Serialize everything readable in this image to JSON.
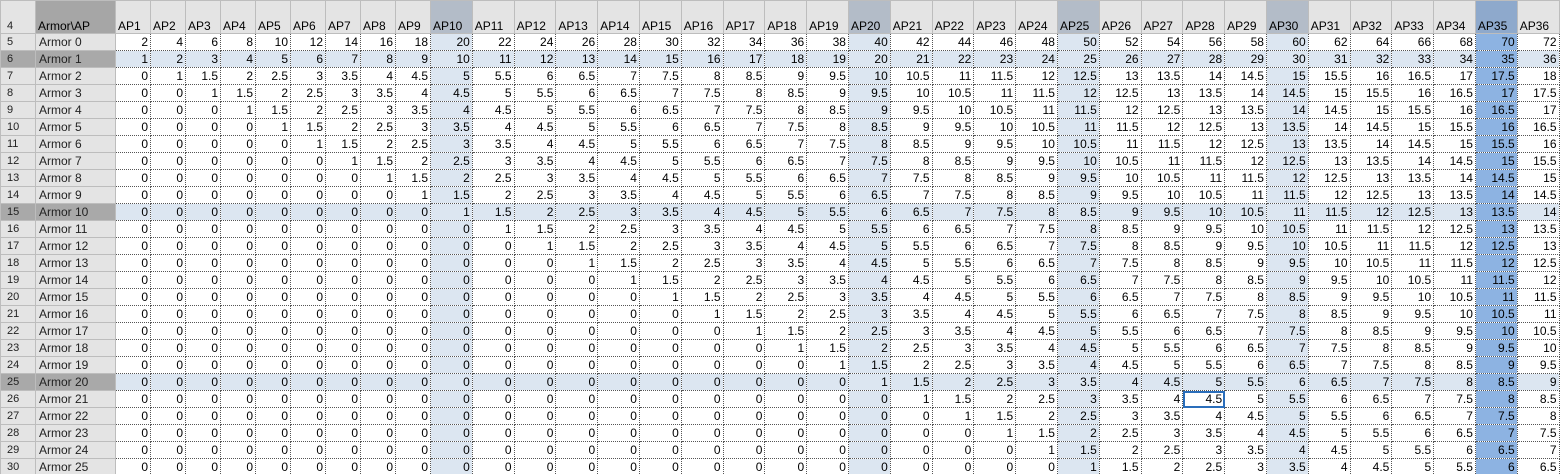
{
  "sheet": {
    "row_numbers": [
      4,
      5,
      6,
      7,
      8,
      9,
      10,
      11,
      12,
      13,
      14,
      15,
      16,
      17,
      18,
      19,
      20,
      21,
      22,
      23,
      24,
      25,
      26,
      27,
      28,
      29,
      30
    ],
    "corner": "Armor\\AP",
    "columns": [
      "AP1",
      "AP2",
      "AP3",
      "AP4",
      "AP5",
      "AP6",
      "AP7",
      "AP8",
      "AP9",
      "AP10",
      "AP11",
      "AP12",
      "AP13",
      "AP14",
      "AP15",
      "AP16",
      "AP17",
      "AP18",
      "AP19",
      "AP20",
      "AP21",
      "AP22",
      "AP23",
      "AP24",
      "AP25",
      "AP26",
      "AP27",
      "AP28",
      "AP29",
      "AP30",
      "AP31",
      "AP32",
      "AP33",
      "AP34",
      "AP35",
      "AP36"
    ],
    "rows": [
      {
        "label": "Armor 0",
        "values": [
          2,
          4,
          6,
          8,
          10,
          12,
          14,
          16,
          18,
          20,
          22,
          24,
          26,
          28,
          30,
          32,
          34,
          36,
          38,
          40,
          42,
          44,
          46,
          48,
          50,
          52,
          54,
          56,
          58,
          60,
          62,
          64,
          66,
          68,
          70,
          72
        ]
      },
      {
        "label": "Armor 1",
        "values": [
          1,
          2,
          3,
          4,
          5,
          6,
          7,
          8,
          9,
          10,
          11,
          12,
          13,
          14,
          15,
          16,
          17,
          18,
          19,
          20,
          21,
          22,
          23,
          24,
          25,
          26,
          27,
          28,
          29,
          30,
          31,
          32,
          33,
          34,
          35,
          36
        ]
      },
      {
        "label": "Armor 2",
        "values": [
          0,
          1,
          1.5,
          2,
          2.5,
          3,
          3.5,
          4,
          4.5,
          5,
          5.5,
          6,
          6.5,
          7,
          7.5,
          8,
          8.5,
          9,
          9.5,
          10,
          10.5,
          11,
          11.5,
          12,
          12.5,
          13,
          13.5,
          14,
          14.5,
          15,
          15.5,
          16,
          16.5,
          17,
          17.5,
          18
        ]
      },
      {
        "label": "Armor 3",
        "values": [
          0,
          0,
          1,
          1.5,
          2,
          2.5,
          3,
          3.5,
          4,
          4.5,
          5,
          5.5,
          6,
          6.5,
          7,
          7.5,
          8,
          8.5,
          9,
          9.5,
          10,
          10.5,
          11,
          11.5,
          12,
          12.5,
          13,
          13.5,
          14,
          14.5,
          15,
          15.5,
          16,
          16.5,
          17,
          17.5
        ]
      },
      {
        "label": "Armor 4",
        "values": [
          0,
          0,
          0,
          1,
          1.5,
          2,
          2.5,
          3,
          3.5,
          4,
          4.5,
          5,
          5.5,
          6,
          6.5,
          7,
          7.5,
          8,
          8.5,
          9,
          9.5,
          10,
          10.5,
          11,
          11.5,
          12,
          12.5,
          13,
          13.5,
          14,
          14.5,
          15,
          15.5,
          16,
          16.5,
          17
        ]
      },
      {
        "label": "Armor 5",
        "values": [
          0,
          0,
          0,
          0,
          1,
          1.5,
          2,
          2.5,
          3,
          3.5,
          4,
          4.5,
          5,
          5.5,
          6,
          6.5,
          7,
          7.5,
          8,
          8.5,
          9,
          9.5,
          10,
          10.5,
          11,
          11.5,
          12,
          12.5,
          13,
          13.5,
          14,
          14.5,
          15,
          15.5,
          16,
          16.5
        ]
      },
      {
        "label": "Armor 6",
        "values": [
          0,
          0,
          0,
          0,
          0,
          1,
          1.5,
          2,
          2.5,
          3,
          3.5,
          4,
          4.5,
          5,
          5.5,
          6,
          6.5,
          7,
          7.5,
          8,
          8.5,
          9,
          9.5,
          10,
          10.5,
          11,
          11.5,
          12,
          12.5,
          13,
          13.5,
          14,
          14.5,
          15,
          15.5,
          16
        ]
      },
      {
        "label": "Armor 7",
        "values": [
          0,
          0,
          0,
          0,
          0,
          0,
          1,
          1.5,
          2,
          2.5,
          3,
          3.5,
          4,
          4.5,
          5,
          5.5,
          6,
          6.5,
          7,
          7.5,
          8,
          8.5,
          9,
          9.5,
          10,
          10.5,
          11,
          11.5,
          12,
          12.5,
          13,
          13.5,
          14,
          14.5,
          15,
          15.5
        ]
      },
      {
        "label": "Armor 8",
        "values": [
          0,
          0,
          0,
          0,
          0,
          0,
          0,
          1,
          1.5,
          2,
          2.5,
          3,
          3.5,
          4,
          4.5,
          5,
          5.5,
          6,
          6.5,
          7,
          7.5,
          8,
          8.5,
          9,
          9.5,
          10,
          10.5,
          11,
          11.5,
          12,
          12.5,
          13,
          13.5,
          14,
          14.5,
          15
        ]
      },
      {
        "label": "Armor 9",
        "values": [
          0,
          0,
          0,
          0,
          0,
          0,
          0,
          0,
          1,
          1.5,
          2,
          2.5,
          3,
          3.5,
          4,
          4.5,
          5,
          5.5,
          6,
          6.5,
          7,
          7.5,
          8,
          8.5,
          9,
          9.5,
          10,
          10.5,
          11,
          11.5,
          12,
          12.5,
          13,
          13.5,
          14,
          14.5
        ]
      },
      {
        "label": "Armor 10",
        "values": [
          0,
          0,
          0,
          0,
          0,
          0,
          0,
          0,
          0,
          1,
          1.5,
          2,
          2.5,
          3,
          3.5,
          4,
          4.5,
          5,
          5.5,
          6,
          6.5,
          7,
          7.5,
          8,
          8.5,
          9,
          9.5,
          10,
          10.5,
          11,
          11.5,
          12,
          12.5,
          13,
          13.5,
          14
        ]
      },
      {
        "label": "Armor 11",
        "values": [
          0,
          0,
          0,
          0,
          0,
          0,
          0,
          0,
          0,
          0,
          1,
          1.5,
          2,
          2.5,
          3,
          3.5,
          4,
          4.5,
          5,
          5.5,
          6,
          6.5,
          7,
          7.5,
          8,
          8.5,
          9,
          9.5,
          10,
          10.5,
          11,
          11.5,
          12,
          12.5,
          13,
          13.5
        ]
      },
      {
        "label": "Armor 12",
        "values": [
          0,
          0,
          0,
          0,
          0,
          0,
          0,
          0,
          0,
          0,
          0,
          1,
          1.5,
          2,
          2.5,
          3,
          3.5,
          4,
          4.5,
          5,
          5.5,
          6,
          6.5,
          7,
          7.5,
          8,
          8.5,
          9,
          9.5,
          10,
          10.5,
          11,
          11.5,
          12,
          12.5,
          13
        ]
      },
      {
        "label": "Armor 13",
        "values": [
          0,
          0,
          0,
          0,
          0,
          0,
          0,
          0,
          0,
          0,
          0,
          0,
          1,
          1.5,
          2,
          2.5,
          3,
          3.5,
          4,
          4.5,
          5,
          5.5,
          6,
          6.5,
          7,
          7.5,
          8,
          8.5,
          9,
          9.5,
          10,
          10.5,
          11,
          11.5,
          12,
          12.5
        ]
      },
      {
        "label": "Armor 14",
        "values": [
          0,
          0,
          0,
          0,
          0,
          0,
          0,
          0,
          0,
          0,
          0,
          0,
          0,
          1,
          1.5,
          2,
          2.5,
          3,
          3.5,
          4,
          4.5,
          5,
          5.5,
          6,
          6.5,
          7,
          7.5,
          8,
          8.5,
          9,
          9.5,
          10,
          10.5,
          11,
          11.5,
          12
        ]
      },
      {
        "label": "Armor 15",
        "values": [
          0,
          0,
          0,
          0,
          0,
          0,
          0,
          0,
          0,
          0,
          0,
          0,
          0,
          0,
          1,
          1.5,
          2,
          2.5,
          3,
          3.5,
          4,
          4.5,
          5,
          5.5,
          6,
          6.5,
          7,
          7.5,
          8,
          8.5,
          9,
          9.5,
          10,
          10.5,
          11,
          11.5
        ]
      },
      {
        "label": "Armor 16",
        "values": [
          0,
          0,
          0,
          0,
          0,
          0,
          0,
          0,
          0,
          0,
          0,
          0,
          0,
          0,
          0,
          1,
          1.5,
          2,
          2.5,
          3,
          3.5,
          4,
          4.5,
          5,
          5.5,
          6,
          6.5,
          7,
          7.5,
          8,
          8.5,
          9,
          9.5,
          10,
          10.5,
          11
        ]
      },
      {
        "label": "Armor 17",
        "values": [
          0,
          0,
          0,
          0,
          0,
          0,
          0,
          0,
          0,
          0,
          0,
          0,
          0,
          0,
          0,
          0,
          1,
          1.5,
          2,
          2.5,
          3,
          3.5,
          4,
          4.5,
          5,
          5.5,
          6,
          6.5,
          7,
          7.5,
          8,
          8.5,
          9,
          9.5,
          10,
          10.5
        ]
      },
      {
        "label": "Armor 18",
        "values": [
          0,
          0,
          0,
          0,
          0,
          0,
          0,
          0,
          0,
          0,
          0,
          0,
          0,
          0,
          0,
          0,
          0,
          1,
          1.5,
          2,
          2.5,
          3,
          3.5,
          4,
          4.5,
          5,
          5.5,
          6,
          6.5,
          7,
          7.5,
          8,
          8.5,
          9,
          9.5,
          10
        ]
      },
      {
        "label": "Armor 19",
        "values": [
          0,
          0,
          0,
          0,
          0,
          0,
          0,
          0,
          0,
          0,
          0,
          0,
          0,
          0,
          0,
          0,
          0,
          0,
          1,
          1.5,
          2,
          2.5,
          3,
          3.5,
          4,
          4.5,
          5,
          5.5,
          6,
          6.5,
          7,
          7.5,
          8,
          8.5,
          9,
          9.5
        ]
      },
      {
        "label": "Armor 20",
        "values": [
          0,
          0,
          0,
          0,
          0,
          0,
          0,
          0,
          0,
          0,
          0,
          0,
          0,
          0,
          0,
          0,
          0,
          0,
          0,
          1,
          1.5,
          2,
          2.5,
          3,
          3.5,
          4,
          4.5,
          5,
          5.5,
          6,
          6.5,
          7,
          7.5,
          8,
          8.5,
          9
        ]
      },
      {
        "label": "Armor 21",
        "values": [
          0,
          0,
          0,
          0,
          0,
          0,
          0,
          0,
          0,
          0,
          0,
          0,
          0,
          0,
          0,
          0,
          0,
          0,
          0,
          0,
          1,
          1.5,
          2,
          2.5,
          3,
          3.5,
          4,
          4.5,
          5,
          5.5,
          6,
          6.5,
          7,
          7.5,
          8,
          8.5
        ]
      },
      {
        "label": "Armor 22",
        "values": [
          0,
          0,
          0,
          0,
          0,
          0,
          0,
          0,
          0,
          0,
          0,
          0,
          0,
          0,
          0,
          0,
          0,
          0,
          0,
          0,
          0,
          1,
          1.5,
          2,
          2.5,
          3,
          3.5,
          4,
          4.5,
          5,
          5.5,
          6,
          6.5,
          7,
          7.5,
          8
        ]
      },
      {
        "label": "Armor 23",
        "values": [
          0,
          0,
          0,
          0,
          0,
          0,
          0,
          0,
          0,
          0,
          0,
          0,
          0,
          0,
          0,
          0,
          0,
          0,
          0,
          0,
          0,
          0,
          1,
          1.5,
          2,
          2.5,
          3,
          3.5,
          4,
          4.5,
          5,
          5.5,
          6,
          6.5,
          7,
          7.5
        ]
      },
      {
        "label": "Armor 24",
        "values": [
          0,
          0,
          0,
          0,
          0,
          0,
          0,
          0,
          0,
          0,
          0,
          0,
          0,
          0,
          0,
          0,
          0,
          0,
          0,
          0,
          0,
          0,
          0,
          1,
          1.5,
          2,
          2.5,
          3,
          3.5,
          4,
          4.5,
          5,
          5.5,
          6,
          6.5,
          7
        ]
      },
      {
        "label": "Armor 25",
        "values": [
          0,
          0,
          0,
          0,
          0,
          0,
          0,
          0,
          0,
          0,
          0,
          0,
          0,
          0,
          0,
          0,
          0,
          0,
          0,
          0,
          0,
          0,
          0,
          0,
          1,
          1.5,
          2,
          2.5,
          3,
          3.5,
          4,
          4.5,
          5,
          5.5,
          6,
          6.5
        ]
      }
    ]
  }
}
